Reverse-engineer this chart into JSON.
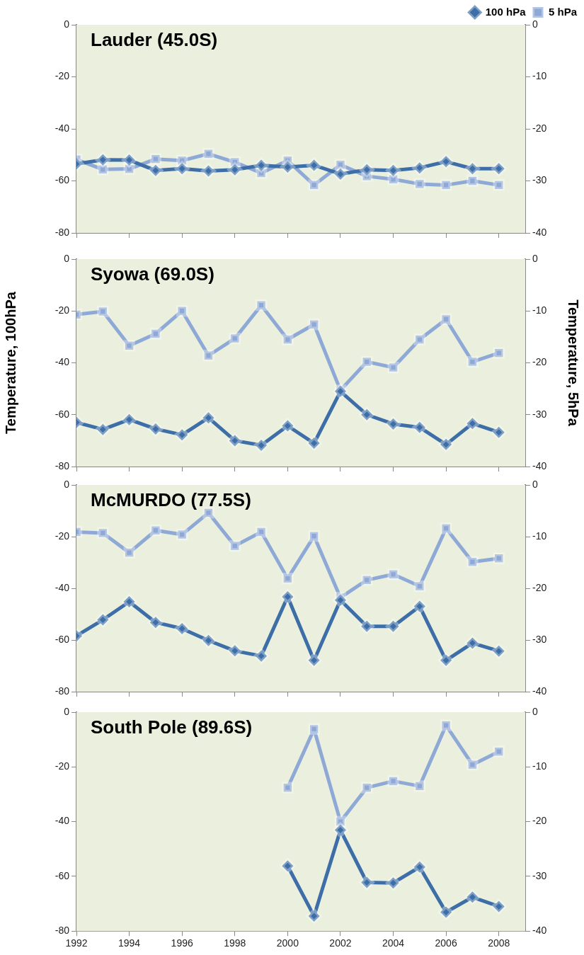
{
  "chart_data": [
    {
      "type": "line",
      "title": "Lauder (45.0S)",
      "x": [
        1992,
        1993,
        1994,
        1995,
        1996,
        1997,
        1998,
        1999,
        2000,
        2001,
        2002,
        2003,
        2004,
        2005,
        2006,
        2007,
        2008
      ],
      "xlim": [
        1992,
        2009
      ],
      "xticks": [
        1992,
        1994,
        1996,
        1998,
        2000,
        2002,
        2004,
        2006,
        2008
      ],
      "ylim": [
        -80,
        0
      ],
      "yticks": [
        -80,
        -60,
        -40,
        -20,
        0
      ],
      "y2lim": [
        -40,
        0
      ],
      "y2ticks": [
        -40,
        -30,
        -20,
        -10,
        0
      ],
      "tick_labels": "y",
      "legend": "top right",
      "series": [
        {
          "name": "100 hPa",
          "color": "#3d6ea8",
          "marker": "diamond",
          "values": [
            -53.5,
            -51.9,
            -52,
            -56,
            -55.3,
            -56.2,
            -55.7,
            -54,
            -54.7,
            -54,
            -57.4,
            -55.7,
            -56,
            -55,
            -52.6,
            -55.3,
            -55.3
          ]
        },
        {
          "name": "5 hPa",
          "color": "#8fa9d6",
          "marker": "square",
          "axis": "y2",
          "values": [
            -25.9,
            -27.8,
            -27.7,
            -25.8,
            -26.1,
            -24.8,
            -26.4,
            -28.5,
            -26.1,
            -30.8,
            -26.9,
            -29.1,
            -29.7,
            -30.6,
            -30.8,
            -30,
            -30.8
          ]
        }
      ]
    },
    {
      "type": "line",
      "title": "Syowa (69.0S)",
      "ylabel": "Temperature, 100hPa",
      "y2label": "Temperature, 5hPa",
      "x": [
        1992,
        1993,
        1994,
        1995,
        1996,
        1997,
        1998,
        1999,
        2000,
        2001,
        2002,
        2003,
        2004,
        2005,
        2006,
        2007,
        2008
      ],
      "xlim": [
        1992,
        2009
      ],
      "xticks": [
        1992,
        1994,
        1996,
        1998,
        2000,
        2002,
        2004,
        2006,
        2008
      ],
      "ylim": [
        -80,
        0
      ],
      "yticks": [
        -80,
        -60,
        -40,
        -20,
        0
      ],
      "y2lim": [
        -40,
        0
      ],
      "y2ticks": [
        -40,
        -30,
        -20,
        -10,
        0
      ],
      "tick_labels": "y",
      "series": [
        {
          "color": "#3d6ea8",
          "marker": "diamond",
          "values": [
            -63,
            -65.7,
            -61.9,
            -65.5,
            -67.8,
            -61.2,
            -70,
            -71.8,
            -64.3,
            -71,
            -51,
            -60,
            -63.6,
            -64.9,
            -71.5,
            -63.4,
            -66.8
          ]
        },
        {
          "color": "#8fa9d6",
          "marker": "square",
          "axis": "y2",
          "values": [
            -10.7,
            -10.1,
            -16.7,
            -14.4,
            -10,
            -18.6,
            -15.3,
            -8.9,
            -15.5,
            -12.6,
            -25.3,
            -19.8,
            -20.9,
            -15.5,
            -11.6,
            -19.8,
            -18.1
          ]
        }
      ]
    },
    {
      "type": "line",
      "title": "McMURDO (77.5S)",
      "x": [
        1992,
        1993,
        1994,
        1995,
        1996,
        1997,
        1998,
        1999,
        2000,
        2001,
        2002,
        2003,
        2004,
        2005,
        2006,
        2007,
        2008
      ],
      "xlim": [
        1992,
        2009
      ],
      "xticks": [
        1992,
        1994,
        1996,
        1998,
        2000,
        2002,
        2004,
        2006,
        2008
      ],
      "ylim": [
        -80,
        0
      ],
      "yticks": [
        -80,
        -60,
        -40,
        -20,
        0
      ],
      "y2lim": [
        -40,
        0
      ],
      "y2ticks": [
        -40,
        -30,
        -20,
        -10,
        0
      ],
      "tick_labels": "y",
      "series": [
        {
          "color": "#3d6ea8",
          "marker": "diamond",
          "values": [
            -58.4,
            -52.2,
            -45.2,
            -53.2,
            -55.6,
            -60.2,
            -64.2,
            -66.2,
            -43.3,
            -67.9,
            -44.6,
            -54.7,
            -54.7,
            -47,
            -67.9,
            -61.2,
            -64.3
          ]
        },
        {
          "color": "#8fa9d6",
          "marker": "square",
          "axis": "y2",
          "values": [
            -9.1,
            -9.3,
            -13.1,
            -8.8,
            -9.6,
            -5.4,
            -11.8,
            -9.1,
            -18.1,
            -9.9,
            -21.8,
            -18.4,
            -17.3,
            -19.6,
            -8.4,
            -14.9,
            -14.2
          ]
        }
      ]
    },
    {
      "type": "line",
      "title": "South Pole (89.6S)",
      "x": [
        2000,
        2001,
        2002,
        2003,
        2004,
        2005,
        2006,
        2007,
        2008
      ],
      "xlim": [
        1992,
        2009
      ],
      "xticks": [
        1992,
        1994,
        1996,
        1998,
        2000,
        2002,
        2004,
        2006,
        2008
      ],
      "ylim": [
        -80,
        0
      ],
      "yticks": [
        -80,
        -60,
        -40,
        -20,
        0
      ],
      "y2lim": [
        -40,
        0
      ],
      "y2ticks": [
        -40,
        -30,
        -20,
        -10,
        0
      ],
      "series": [
        {
          "color": "#3d6ea8",
          "marker": "diamond",
          "values": [
            -56.2,
            -74.5,
            -43.1,
            -62.2,
            -62.4,
            -56.6,
            -73.1,
            -67.6,
            -71
          ]
        },
        {
          "color": "#8fa9d6",
          "marker": "square",
          "axis": "y2",
          "values": [
            -13.8,
            -3.1,
            -20,
            -13.8,
            -12.6,
            -13.5,
            -2.4,
            -9.6,
            -7.2
          ]
        }
      ]
    }
  ]
}
